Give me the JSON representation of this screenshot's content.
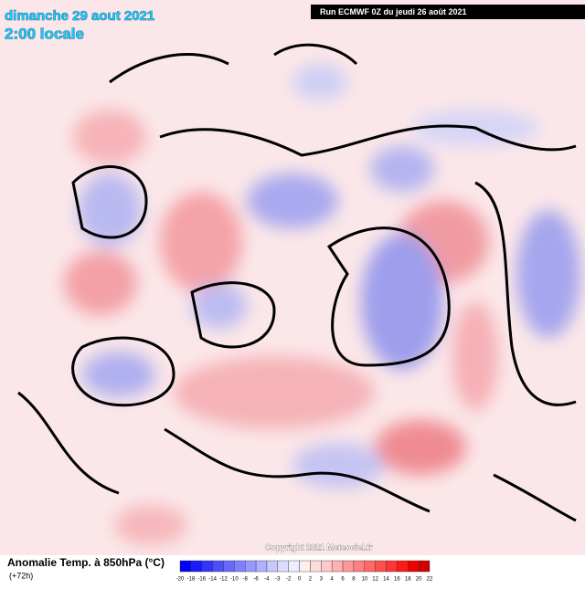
{
  "header": {
    "date": "dimanche 29 aout 2021",
    "time": "2:00 locale",
    "run": "Run ECMWF 0Z du jeudi 26 août 2021"
  },
  "copyright": "Copyright 2021 Meteociel.fr",
  "legend": {
    "title": "Anomalie Temp. à 850hPa (°C)",
    "lead": "(+72h)",
    "ticks": [
      -20,
      -18,
      -16,
      -14,
      -12,
      -10,
      -8,
      -6,
      -4,
      -3,
      -2,
      0,
      2,
      3,
      4,
      6,
      8,
      10,
      12,
      14,
      16,
      18,
      20,
      22
    ],
    "colors": [
      "#0000ff",
      "#1a1aff",
      "#3434ff",
      "#4e4eff",
      "#6868ff",
      "#8080ff",
      "#9898ff",
      "#b0b0ff",
      "#c8c8ff",
      "#dcdcff",
      "#eeeeff",
      "#ffeeee",
      "#ffdcdc",
      "#ffc8c8",
      "#ffb0b0",
      "#ff9898",
      "#ff8080",
      "#ff6868",
      "#ff4e4e",
      "#ff3434",
      "#ff1a1a",
      "#f00000",
      "#d00000"
    ]
  }
}
